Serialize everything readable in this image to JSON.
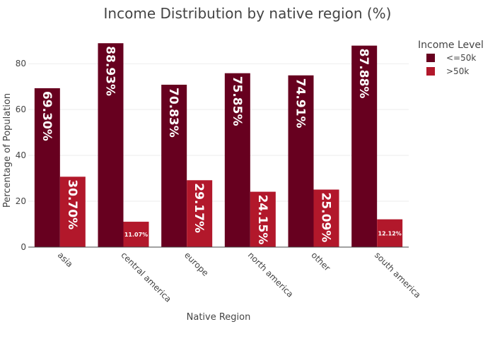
{
  "chart_data": {
    "type": "bar",
    "title": "Income Distribution by native region (%)",
    "xlabel": "Native Region",
    "ylabel": "Percentage of Population",
    "categories": [
      "asia",
      "central america",
      "europe",
      "north america",
      "other",
      "south america"
    ],
    "series": [
      {
        "name": "<=50k",
        "color": "#67001f",
        "values": [
          69.3,
          88.93,
          70.83,
          75.85,
          74.91,
          87.88
        ],
        "labels": [
          "69.30%",
          "88.93%",
          "70.83%",
          "75.85%",
          "74.91%",
          "87.88%"
        ]
      },
      {
        "name": ">50k",
        "color": "#b2182b",
        "values": [
          30.7,
          11.07,
          29.17,
          24.15,
          25.09,
          12.12
        ],
        "labels": [
          "30.70%",
          "11.07%",
          "29.17%",
          "24.15%",
          "25.09%",
          "12.12%"
        ]
      }
    ],
    "ylim": [
      0,
      93
    ],
    "yticks": [
      0,
      20,
      40,
      60,
      80
    ],
    "legend": {
      "title": "Income Level",
      "position": "right"
    },
    "grid": true
  }
}
